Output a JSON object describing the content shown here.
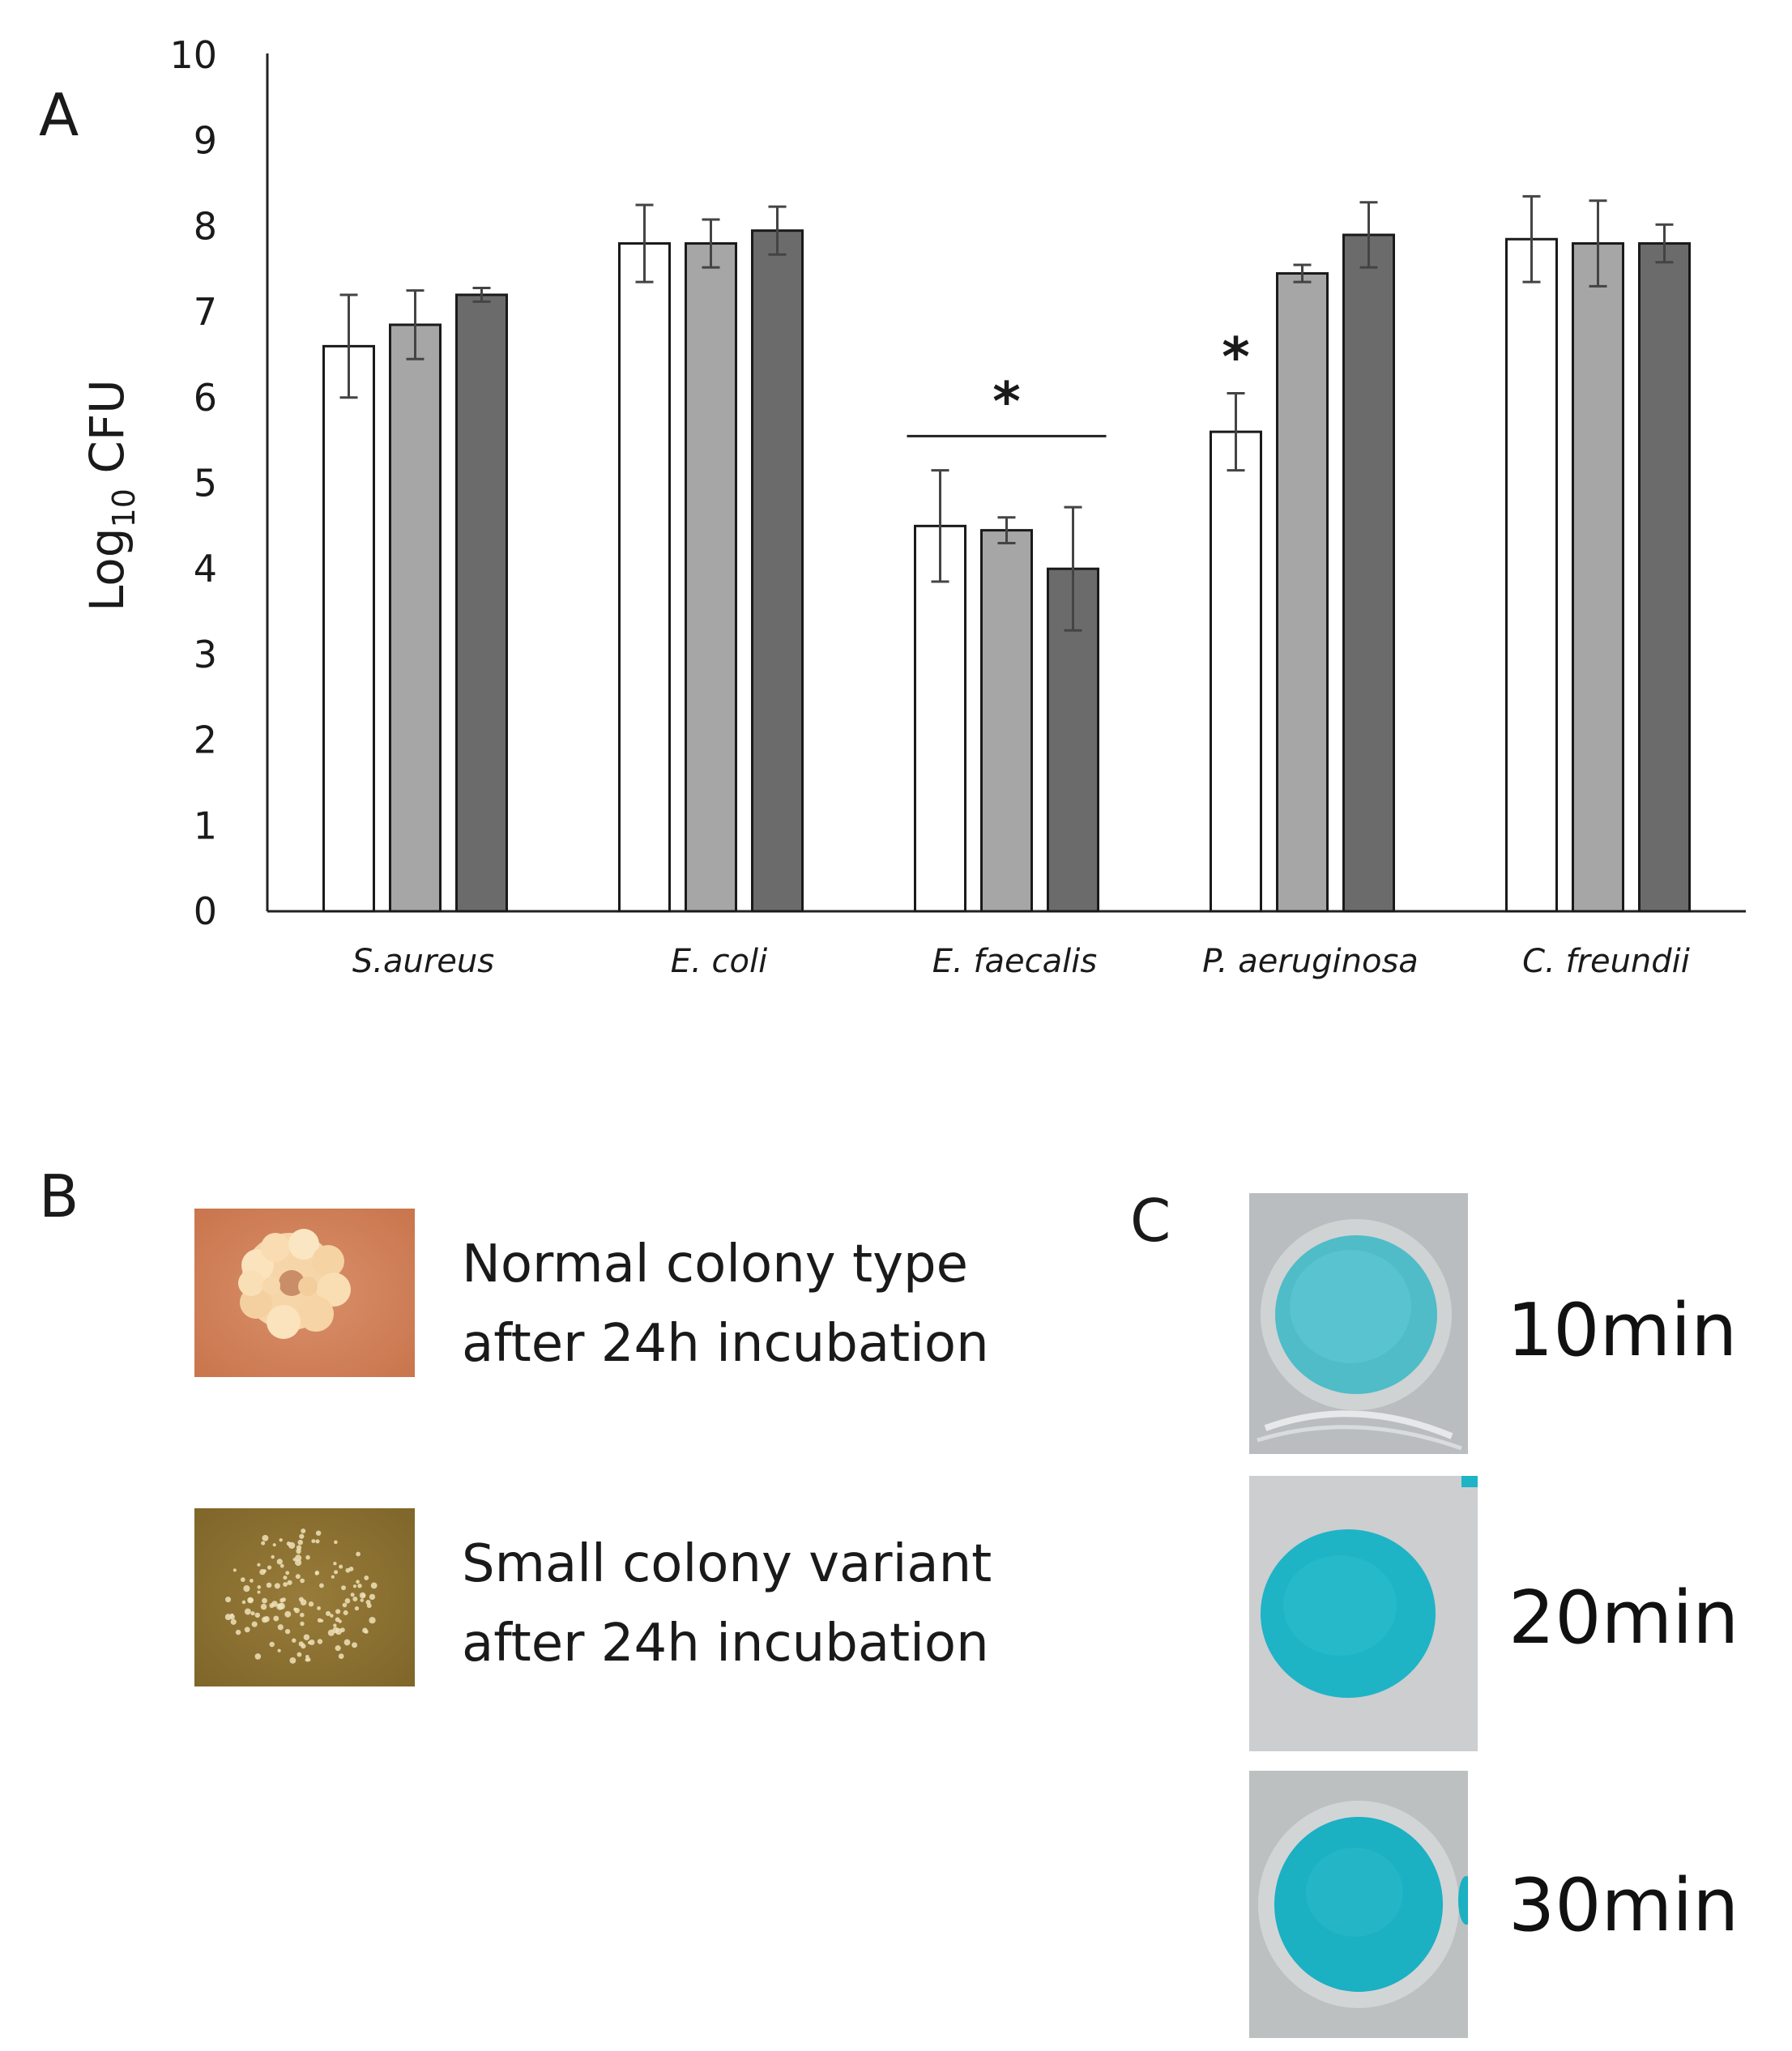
{
  "panels": {
    "a": "A",
    "b": "B",
    "c": "C"
  },
  "chart_data": {
    "type": "bar",
    "categories": [
      "S.aureus",
      "E. coli",
      "E. faecalis",
      "P. aeruginosa",
      "C. freundii"
    ],
    "ylabel_main": "Log",
    "ylabel_sub": "10",
    "ylabel_rest": " CFU",
    "ylim": [
      0,
      10
    ],
    "yticks": [
      0,
      1,
      2,
      3,
      4,
      5,
      6,
      7,
      8,
      9,
      10
    ],
    "grid": false,
    "series": [
      {
        "values": [
          6.6,
          7.8,
          4.5,
          5.6,
          7.85
        ],
        "errors": [
          0.6,
          0.45,
          0.65,
          0.45,
          0.5
        ],
        "color": "#ffffff"
      },
      {
        "values": [
          6.85,
          7.8,
          4.45,
          7.45,
          7.8
        ],
        "errors": [
          0.4,
          0.28,
          0.15,
          0.1,
          0.5
        ],
        "color": "#a6a6a6"
      },
      {
        "values": [
          7.2,
          7.95,
          4.0,
          7.9,
          7.8
        ],
        "errors": [
          0.08,
          0.28,
          0.72,
          0.38,
          0.22
        ],
        "color": "#6b6b6b"
      }
    ],
    "annotations": [
      {
        "text": "*",
        "category": "E. faecalis",
        "type": "bracket"
      },
      {
        "text": "*",
        "category": "P. aeruginosa",
        "series": 0,
        "type": "bar"
      }
    ]
  },
  "colonies": [
    {
      "line1": "Normal colony type",
      "line2": "after 24h incubation"
    },
    {
      "line1": "Small colony variant",
      "line2": "after 24h incubation"
    }
  ],
  "timepoints": [
    "10min",
    "20min",
    "30min"
  ],
  "colors": {
    "orange_agar": "#d4845a",
    "brown_agar": "#8e7333",
    "blue_dye": "#27b8c8",
    "tray": "#bfc3c5"
  }
}
